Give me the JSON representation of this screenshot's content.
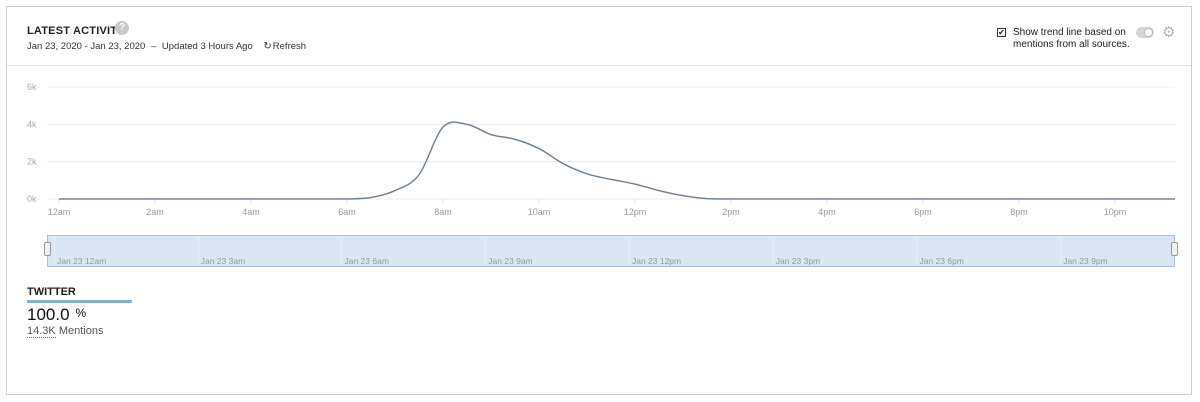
{
  "header": {
    "title": "LATEST ACTIVITY",
    "help_icon": "?",
    "date_range": "Jan 23, 2020 - Jan 23, 2020",
    "separator": "–",
    "updated": "Updated 3 Hours Ago",
    "refresh_icon": "↻",
    "refresh_label": "Refresh"
  },
  "trend": {
    "checked_glyph": "✔",
    "label": "Show trend line based on mentions from all sources.",
    "gear_icon": "⚙"
  },
  "chart_data": {
    "type": "area",
    "y_ticks": [
      "6k",
      "4k",
      "2k",
      "0k"
    ],
    "ylim": [
      0,
      6000
    ],
    "x_ticks": [
      "12am",
      "2am",
      "4am",
      "6am",
      "8am",
      "10am",
      "12pm",
      "2pm",
      "4pm",
      "6pm",
      "8pm",
      "10pm"
    ],
    "x_hours": [
      0,
      0.5,
      1,
      1.5,
      2,
      2.5,
      3,
      3.5,
      4,
      4.5,
      5,
      5.5,
      6,
      6.5,
      7,
      7.5,
      8,
      8.5,
      9,
      9.5,
      10,
      10.5,
      11,
      11.5,
      12,
      12.5,
      13,
      13.5,
      14,
      14.5,
      15,
      15.5,
      16,
      16.5,
      17,
      17.5,
      18,
      18.5,
      19,
      19.5,
      20,
      20.5,
      21,
      21.5,
      22,
      22.5,
      23,
      23.25
    ],
    "values": [
      0,
      0,
      0,
      0,
      0,
      0,
      0,
      0,
      0,
      0,
      0,
      0,
      0,
      80,
      450,
      1300,
      3850,
      4000,
      3450,
      3200,
      2700,
      1900,
      1350,
      1050,
      800,
      450,
      180,
      20,
      0,
      0,
      0,
      0,
      0,
      0,
      0,
      0,
      0,
      0,
      0,
      0,
      0,
      0,
      0,
      0,
      0,
      0,
      0,
      0
    ],
    "grid": true,
    "line_color": "#7a8a99"
  },
  "navigator": {
    "labels": [
      "Jan 23 12am",
      "Jan 23 3am",
      "Jan 23 6am",
      "Jan 23 9am",
      "Jan 23 12pm",
      "Jan 23 3pm",
      "Jan 23 6pm",
      "Jan 23 9pm"
    ]
  },
  "source": {
    "name": "TWITTER",
    "share": "100.0",
    "share_unit": "%",
    "mentions_count": "14.3K",
    "mentions_label": "Mentions",
    "bar_color": "#7fb0d0"
  }
}
